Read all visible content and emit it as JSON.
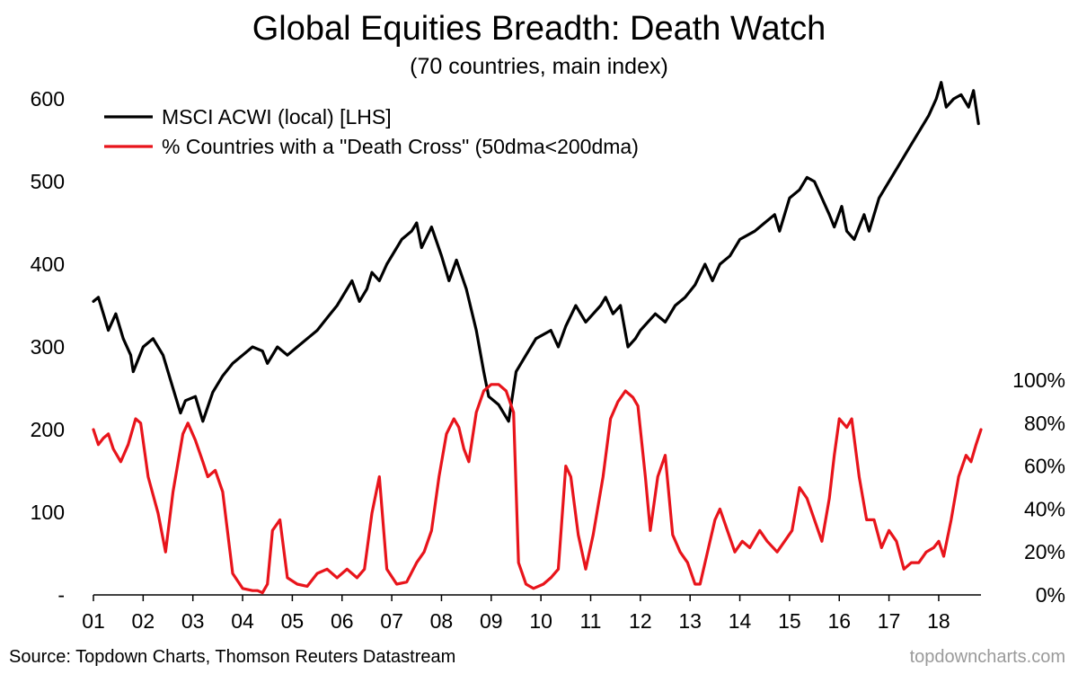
{
  "chart_data": {
    "type": "line",
    "title": "Global Equities Breadth: Death Watch",
    "subtitle": "(70 countries, main index)",
    "x_tick_labels": [
      "01",
      "02",
      "03",
      "04",
      "05",
      "06",
      "07",
      "08",
      "09",
      "10",
      "11",
      "12",
      "13",
      "14",
      "15",
      "16",
      "17",
      "18"
    ],
    "x_range": [
      2001.0,
      2018.85
    ],
    "y_left": {
      "range": [
        0,
        600
      ],
      "tick_labels": [
        "-",
        "100",
        "200",
        "300",
        "400",
        "500",
        "600"
      ],
      "tick_values": [
        0,
        100,
        200,
        300,
        400,
        500,
        600
      ]
    },
    "y_right": {
      "range": [
        0,
        1.0
      ],
      "tick_labels": [
        "0%",
        "20%",
        "40%",
        "60%",
        "80%",
        "100%"
      ],
      "tick_values": [
        0,
        0.2,
        0.4,
        0.6,
        0.8,
        1.0
      ]
    },
    "grid": false,
    "legend_placement": "top-left",
    "series": [
      {
        "name": "MSCI ACWI (local) [LHS]",
        "color": "#000000",
        "axis": "left",
        "x": [
          2001.0,
          2001.1,
          2001.2,
          2001.3,
          2001.45,
          2001.6,
          2001.75,
          2001.8,
          2002.0,
          2002.2,
          2002.4,
          2002.55,
          2002.75,
          2002.85,
          2003.05,
          2003.2,
          2003.4,
          2003.6,
          2003.8,
          2004.0,
          2004.2,
          2004.4,
          2004.5,
          2004.7,
          2004.9,
          2005.1,
          2005.3,
          2005.5,
          2005.7,
          2005.9,
          2006.2,
          2006.35,
          2006.5,
          2006.6,
          2006.75,
          2006.9,
          2007.2,
          2007.4,
          2007.5,
          2007.6,
          2007.8,
          2008.0,
          2008.15,
          2008.3,
          2008.5,
          2008.7,
          2008.85,
          2008.95,
          2009.15,
          2009.35,
          2009.5,
          2009.7,
          2009.9,
          2010.2,
          2010.35,
          2010.5,
          2010.7,
          2010.9,
          2011.2,
          2011.3,
          2011.45,
          2011.6,
          2011.75,
          2011.9,
          2012.0,
          2012.3,
          2012.5,
          2012.7,
          2012.9,
          2013.1,
          2013.3,
          2013.45,
          2013.6,
          2013.8,
          2014.0,
          2014.3,
          2014.5,
          2014.7,
          2014.8,
          2015.0,
          2015.2,
          2015.35,
          2015.5,
          2015.65,
          2015.8,
          2015.9,
          2016.05,
          2016.15,
          2016.3,
          2016.5,
          2016.6,
          2016.8,
          2017.0,
          2017.2,
          2017.4,
          2017.6,
          2017.8,
          2017.95,
          2018.05,
          2018.15,
          2018.3,
          2018.45,
          2018.6,
          2018.7,
          2018.8
        ],
        "y": [
          355,
          360,
          340,
          320,
          340,
          310,
          290,
          270,
          300,
          310,
          290,
          260,
          220,
          235,
          240,
          210,
          245,
          265,
          280,
          290,
          300,
          295,
          280,
          300,
          290,
          300,
          310,
          320,
          335,
          350,
          380,
          355,
          370,
          390,
          380,
          400,
          430,
          440,
          450,
          420,
          445,
          410,
          380,
          405,
          370,
          320,
          270,
          240,
          230,
          210,
          270,
          290,
          310,
          320,
          300,
          325,
          350,
          330,
          350,
          360,
          340,
          350,
          300,
          310,
          320,
          340,
          330,
          350,
          360,
          375,
          400,
          380,
          400,
          410,
          430,
          440,
          450,
          460,
          440,
          480,
          490,
          505,
          500,
          480,
          460,
          445,
          470,
          440,
          430,
          460,
          440,
          480,
          500,
          520,
          540,
          560,
          580,
          600,
          620,
          590,
          600,
          605,
          590,
          610,
          570
        ]
      },
      {
        "name": "% Countries with a \"Death Cross\" (50dma<200dma)",
        "color": "#e8141b",
        "axis": "right",
        "x": [
          2001.0,
          2001.1,
          2001.2,
          2001.3,
          2001.4,
          2001.55,
          2001.7,
          2001.85,
          2001.95,
          2002.1,
          2002.3,
          2002.45,
          2002.6,
          2002.8,
          2002.9,
          2003.05,
          2003.2,
          2003.3,
          2003.45,
          2003.6,
          2003.8,
          2004.0,
          2004.2,
          2004.3,
          2004.4,
          2004.5,
          2004.6,
          2004.75,
          2004.9,
          2005.1,
          2005.3,
          2005.5,
          2005.7,
          2005.9,
          2006.1,
          2006.3,
          2006.45,
          2006.6,
          2006.75,
          2006.9,
          2007.1,
          2007.3,
          2007.5,
          2007.65,
          2007.8,
          2007.95,
          2008.1,
          2008.25,
          2008.35,
          2008.45,
          2008.55,
          2008.7,
          2008.85,
          2009.0,
          2009.15,
          2009.3,
          2009.45,
          2009.55,
          2009.7,
          2009.85,
          2010.05,
          2010.2,
          2010.35,
          2010.5,
          2010.6,
          2010.75,
          2010.9,
          2011.05,
          2011.25,
          2011.4,
          2011.55,
          2011.7,
          2011.85,
          2011.95,
          2012.1,
          2012.2,
          2012.35,
          2012.5,
          2012.65,
          2012.8,
          2012.95,
          2013.1,
          2013.2,
          2013.35,
          2013.5,
          2013.6,
          2013.75,
          2013.9,
          2014.05,
          2014.2,
          2014.4,
          2014.55,
          2014.75,
          2014.9,
          2015.05,
          2015.2,
          2015.35,
          2015.5,
          2015.65,
          2015.8,
          2015.9,
          2016.0,
          2016.15,
          2016.25,
          2016.4,
          2016.55,
          2016.7,
          2016.85,
          2017.0,
          2017.15,
          2017.3,
          2017.45,
          2017.6,
          2017.75,
          2017.9,
          2018.0,
          2018.1,
          2018.25,
          2018.4,
          2018.55,
          2018.65,
          2018.75,
          2018.85
        ],
        "y": [
          0.77,
          0.7,
          0.73,
          0.75,
          0.68,
          0.62,
          0.7,
          0.82,
          0.8,
          0.55,
          0.38,
          0.2,
          0.48,
          0.75,
          0.8,
          0.72,
          0.62,
          0.55,
          0.58,
          0.48,
          0.1,
          0.03,
          0.02,
          0.02,
          0.01,
          0.05,
          0.3,
          0.35,
          0.08,
          0.05,
          0.04,
          0.1,
          0.12,
          0.08,
          0.12,
          0.08,
          0.12,
          0.38,
          0.55,
          0.12,
          0.05,
          0.06,
          0.15,
          0.2,
          0.3,
          0.55,
          0.75,
          0.82,
          0.78,
          0.68,
          0.62,
          0.85,
          0.95,
          0.98,
          0.98,
          0.95,
          0.85,
          0.15,
          0.05,
          0.03,
          0.05,
          0.08,
          0.12,
          0.6,
          0.55,
          0.28,
          0.12,
          0.28,
          0.55,
          0.82,
          0.9,
          0.95,
          0.92,
          0.88,
          0.55,
          0.3,
          0.55,
          0.65,
          0.28,
          0.2,
          0.15,
          0.05,
          0.05,
          0.2,
          0.35,
          0.4,
          0.3,
          0.2,
          0.25,
          0.22,
          0.3,
          0.25,
          0.2,
          0.25,
          0.3,
          0.5,
          0.45,
          0.35,
          0.25,
          0.45,
          0.65,
          0.82,
          0.78,
          0.82,
          0.55,
          0.35,
          0.35,
          0.22,
          0.3,
          0.25,
          0.12,
          0.15,
          0.15,
          0.2,
          0.22,
          0.25,
          0.18,
          0.35,
          0.55,
          0.65,
          0.62,
          0.7,
          0.77
        ]
      }
    ]
  },
  "footer": {
    "source": "Source: Topdown Charts, Thomson Reuters Datastream",
    "watermark": "topdowncharts.com"
  }
}
